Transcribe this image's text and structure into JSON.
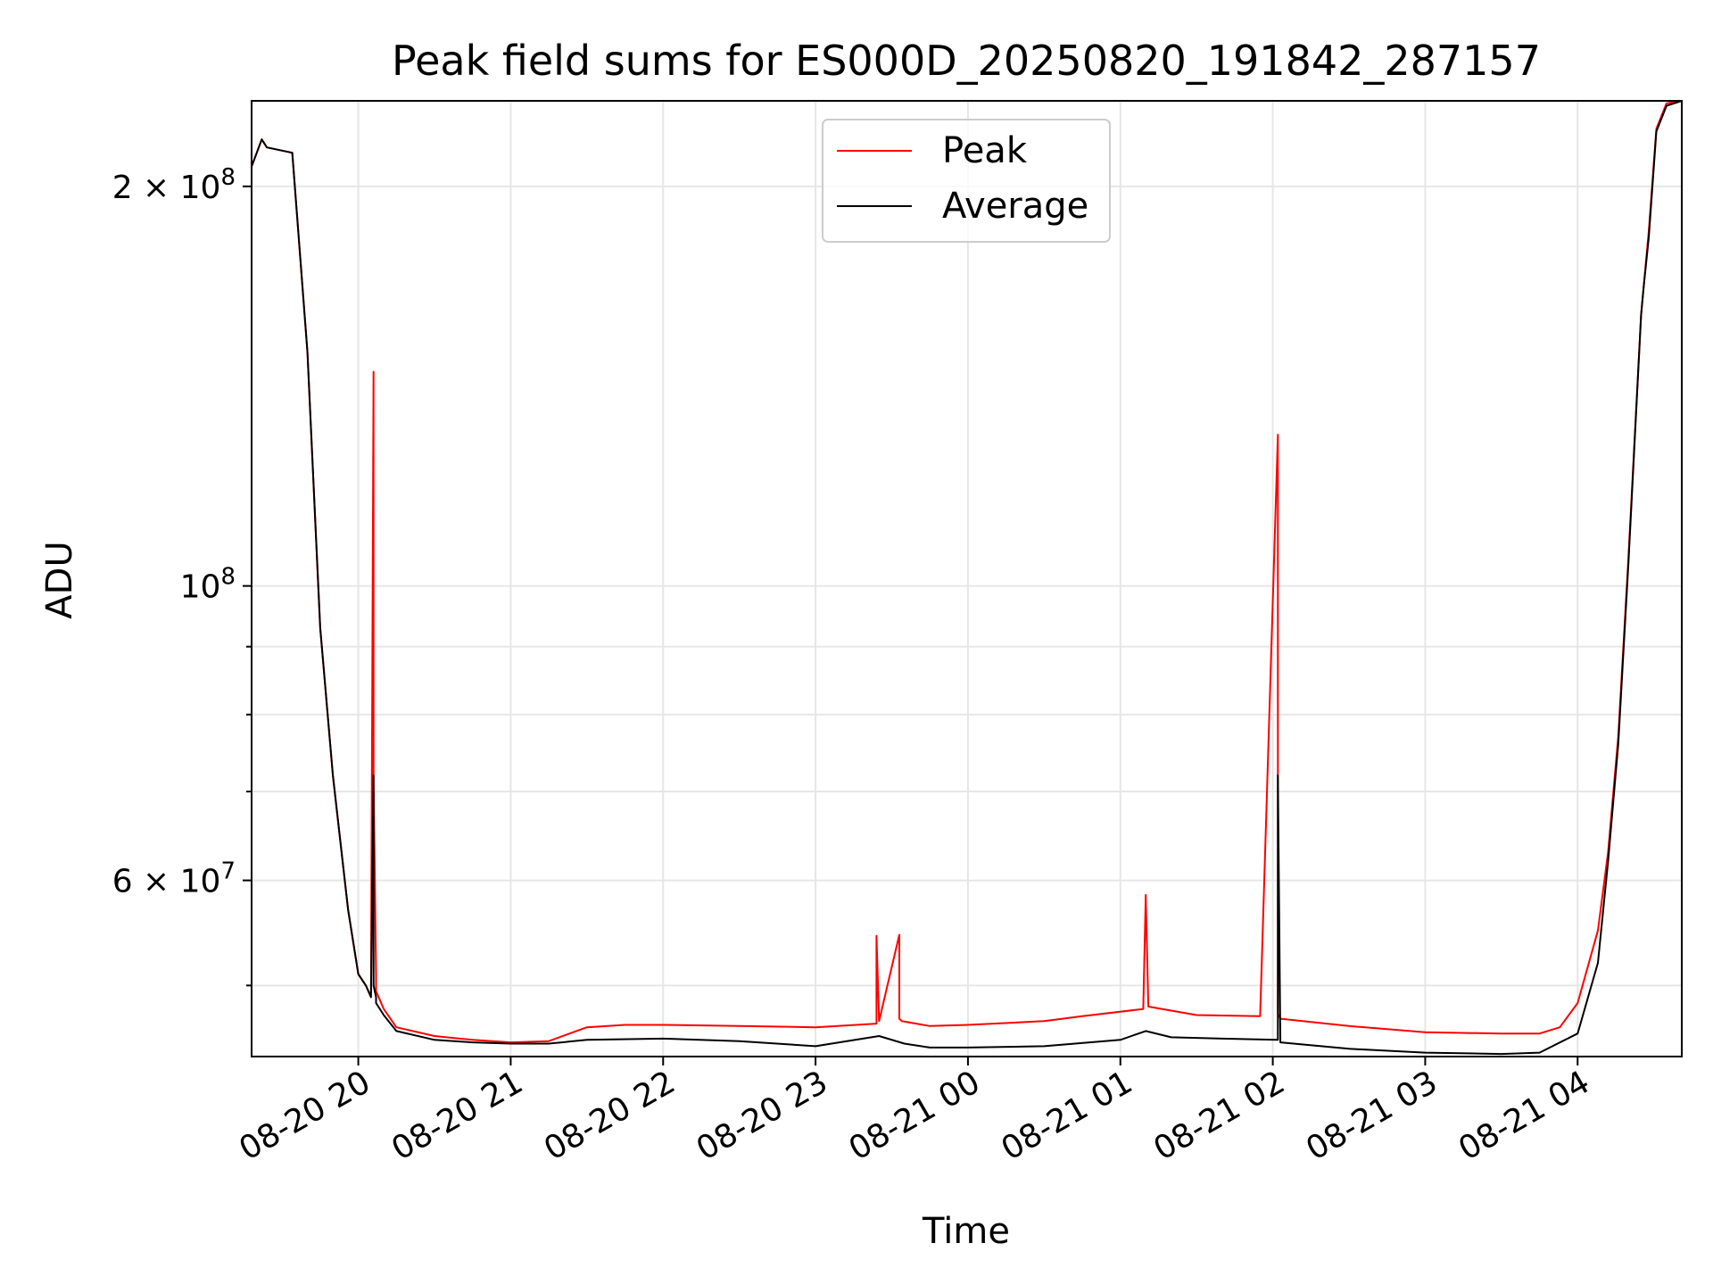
{
  "chart_data": {
    "type": "line",
    "title": "Peak field sums for ES000D_20250820_191842_287157",
    "xlabel": "Time",
    "ylabel": "ADU",
    "y_scale": "log",
    "ylim": [
      44200000,
      232000000
    ],
    "xlim": [
      "2025-08-20 19:18",
      "2025-08-21 04:41"
    ],
    "grid": true,
    "legend_position": "top-center",
    "x_ticks": [
      {
        "t": "2025-08-20 20:00",
        "label": "08-20 20"
      },
      {
        "t": "2025-08-20 21:00",
        "label": "08-20 21"
      },
      {
        "t": "2025-08-20 22:00",
        "label": "08-20 22"
      },
      {
        "t": "2025-08-20 23:00",
        "label": "08-20 23"
      },
      {
        "t": "2025-08-21 00:00",
        "label": "08-21 00"
      },
      {
        "t": "2025-08-21 01:00",
        "label": "08-21 01"
      },
      {
        "t": "2025-08-21 02:00",
        "label": "08-21 02"
      },
      {
        "t": "2025-08-21 03:00",
        "label": "08-21 03"
      },
      {
        "t": "2025-08-21 04:00",
        "label": "08-21 04"
      }
    ],
    "y_major_ticks": [
      {
        "value": 60000000,
        "base": "6 × 10",
        "exp": "7"
      },
      {
        "value": 100000000,
        "base": "10",
        "exp": "8"
      },
      {
        "value": 200000000,
        "base": "2 × 10",
        "exp": "8"
      }
    ],
    "y_minor_ticks": [
      50000000,
      70000000,
      80000000,
      90000000
    ],
    "series": [
      {
        "name": "Peak",
        "color": "#ff0000",
        "x": [
          "2025-08-20 19:18",
          "2025-08-20 19:22",
          "2025-08-20 19:24",
          "2025-08-20 19:34",
          "2025-08-20 19:40",
          "2025-08-20 19:45",
          "2025-08-20 19:50",
          "2025-08-20 19:53",
          "2025-08-20 19:56",
          "2025-08-20 20:00",
          "2025-08-20 20:03",
          "2025-08-20 20:05",
          "2025-08-20 20:06",
          "2025-08-20 20:06",
          "2025-08-20 20:07",
          "2025-08-20 20:07",
          "2025-08-20 20:10",
          "2025-08-20 20:15",
          "2025-08-20 20:30",
          "2025-08-20 20:45",
          "2025-08-20 21:00",
          "2025-08-20 21:15",
          "2025-08-20 21:30",
          "2025-08-20 21:45",
          "2025-08-20 22:00",
          "2025-08-20 22:30",
          "2025-08-20 23:00",
          "2025-08-20 23:24",
          "2025-08-20 23:24",
          "2025-08-20 23:25",
          "2025-08-20 23:33",
          "2025-08-20 23:33",
          "2025-08-20 23:34",
          "2025-08-20 23:45",
          "2025-08-21 00:00",
          "2025-08-21 00:30",
          "2025-08-21 00:45",
          "2025-08-21 01:09",
          "2025-08-21 01:10",
          "2025-08-21 01:11",
          "2025-08-21 01:30",
          "2025-08-21 01:55",
          "2025-08-21 02:02",
          "2025-08-21 02:02",
          "2025-08-21 02:03",
          "2025-08-21 02:30",
          "2025-08-21 03:00",
          "2025-08-21 03:30",
          "2025-08-21 03:45",
          "2025-08-21 03:53",
          "2025-08-21 04:00",
          "2025-08-21 04:08",
          "2025-08-21 04:12",
          "2025-08-21 04:16",
          "2025-08-21 04:20",
          "2025-08-21 04:25",
          "2025-08-21 04:28",
          "2025-08-21 04:31",
          "2025-08-21 04:35",
          "2025-08-21 04:41"
        ],
        "y": [
          207000000,
          217000000,
          214000000,
          212000000,
          150000000,
          93000000,
          72000000,
          64000000,
          57000000,
          51000000,
          50000000,
          49000000,
          145000000,
          72000000,
          51000000,
          49500000,
          48000000,
          46500000,
          45800000,
          45500000,
          45300000,
          45400000,
          46500000,
          46700000,
          46700000,
          46600000,
          46500000,
          46800000,
          54500000,
          47000000,
          54600000,
          47200000,
          47000000,
          46600000,
          46700000,
          47000000,
          47400000,
          48000000,
          58500000,
          48200000,
          47500000,
          47400000,
          130000000,
          47600000,
          47200000,
          46600000,
          46100000,
          46000000,
          46000000,
          46500000,
          48500000,
          55000000,
          63000000,
          77000000,
          105000000,
          160000000,
          185000000,
          221000000,
          231000000,
          232000000
        ]
      },
      {
        "name": "Average",
        "color": "#000000",
        "x": [
          "2025-08-20 19:18",
          "2025-08-20 19:22",
          "2025-08-20 19:24",
          "2025-08-20 19:34",
          "2025-08-20 19:40",
          "2025-08-20 19:45",
          "2025-08-20 19:50",
          "2025-08-20 19:53",
          "2025-08-20 19:56",
          "2025-08-20 20:00",
          "2025-08-20 20:03",
          "2025-08-20 20:05",
          "2025-08-20 20:06",
          "2025-08-20 20:06",
          "2025-08-20 20:07",
          "2025-08-20 20:07",
          "2025-08-20 20:10",
          "2025-08-20 20:15",
          "2025-08-20 20:30",
          "2025-08-20 20:45",
          "2025-08-20 21:00",
          "2025-08-20 21:15",
          "2025-08-20 21:30",
          "2025-08-20 22:00",
          "2025-08-20 22:30",
          "2025-08-20 23:00",
          "2025-08-20 23:25",
          "2025-08-20 23:35",
          "2025-08-20 23:45",
          "2025-08-21 00:00",
          "2025-08-21 00:30",
          "2025-08-21 01:00",
          "2025-08-21 01:10",
          "2025-08-21 01:20",
          "2025-08-21 01:40",
          "2025-08-21 02:02",
          "2025-08-21 02:02",
          "2025-08-21 02:03",
          "2025-08-21 02:30",
          "2025-08-21 03:00",
          "2025-08-21 03:30",
          "2025-08-21 03:45",
          "2025-08-21 04:00",
          "2025-08-21 04:08",
          "2025-08-21 04:12",
          "2025-08-21 04:16",
          "2025-08-21 04:20",
          "2025-08-21 04:25",
          "2025-08-21 04:26",
          "2025-08-21 04:28",
          "2025-08-21 04:31",
          "2025-08-21 04:35",
          "2025-08-21 04:41"
        ],
        "y": [
          207000000,
          217000000,
          214000000,
          212000000,
          150000000,
          93000000,
          72000000,
          64000000,
          57000000,
          51000000,
          50000000,
          49000000,
          72000000,
          50000000,
          49000000,
          48500000,
          47500000,
          46200000,
          45500000,
          45300000,
          45200000,
          45200000,
          45500000,
          45600000,
          45400000,
          45000000,
          45800000,
          45200000,
          44900000,
          44900000,
          45000000,
          45500000,
          46200000,
          45700000,
          45600000,
          45500000,
          72000000,
          45300000,
          44800000,
          44500000,
          44400000,
          44500000,
          46000000,
          52000000,
          62000000,
          76000000,
          104000000,
          160000000,
          168000000,
          183000000,
          220000000,
          230000000,
          232000000
        ]
      }
    ]
  }
}
